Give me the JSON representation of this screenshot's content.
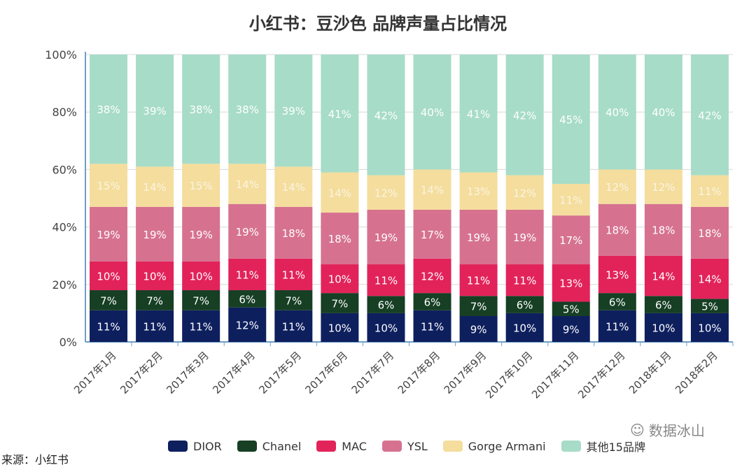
{
  "chart_data": {
    "type": "bar",
    "stacked": true,
    "title": "小红书：豆沙色 品牌声量占比情况",
    "categories": [
      "2017年1月",
      "2017年2月",
      "2017年3月",
      "2017年4月",
      "2017年5月",
      "2017年6月",
      "2017年7月",
      "2017年8月",
      "2017年9月",
      "2017年10月",
      "2017年11月",
      "2017年12月",
      "2018年1月",
      "2018年2月"
    ],
    "yticks": [
      "0%",
      "20%",
      "40%",
      "60%",
      "80%",
      "100%"
    ],
    "ylim": [
      0,
      100
    ],
    "legend_position": "bottom",
    "series": [
      {
        "name": "DIOR",
        "color": "#0e1f5e",
        "values": [
          11,
          11,
          11,
          12,
          11,
          10,
          10,
          11,
          9,
          10,
          9,
          11,
          10,
          10
        ]
      },
      {
        "name": "Chanel",
        "color": "#163f24",
        "values": [
          7,
          7,
          7,
          6,
          7,
          7,
          6,
          6,
          7,
          6,
          5,
          6,
          6,
          5
        ]
      },
      {
        "name": "MAC",
        "color": "#e2235a",
        "values": [
          10,
          10,
          10,
          11,
          11,
          10,
          11,
          12,
          11,
          11,
          13,
          13,
          14,
          14
        ]
      },
      {
        "name": "YSL",
        "color": "#d6728f",
        "values": [
          19,
          19,
          19,
          19,
          18,
          18,
          19,
          17,
          19,
          19,
          17,
          18,
          18,
          18
        ]
      },
      {
        "name": "Gorge Armani",
        "color": "#f4dd9d",
        "values": [
          15,
          14,
          15,
          14,
          14,
          14,
          12,
          14,
          13,
          12,
          11,
          12,
          12,
          11
        ]
      },
      {
        "name": "其他15品牌",
        "color": "#a7dcc8",
        "values": [
          38,
          39,
          38,
          38,
          39,
          41,
          42,
          40,
          41,
          42,
          45,
          40,
          40,
          42
        ]
      }
    ]
  },
  "source": "来源：小红书",
  "watermark": "数据冰山"
}
